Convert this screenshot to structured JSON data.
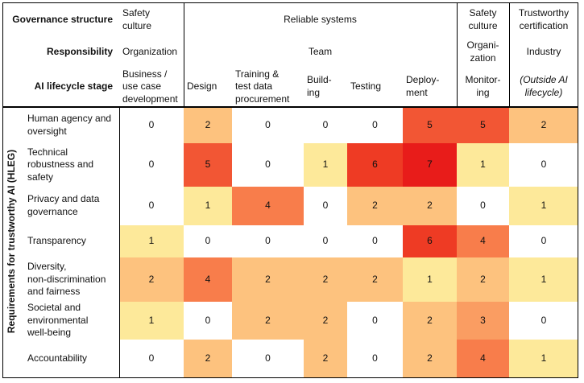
{
  "chart_data": {
    "type": "heatmap",
    "row_titles": [
      "Governance structure",
      "Responsibility",
      "AI lifecycle stage"
    ],
    "governance": [
      "Safety\nculture",
      "Reliable systems",
      "Safety\nculture",
      "Trustworthy\ncertification"
    ],
    "responsibility": [
      "Organization",
      "Team",
      "Organi-\nzation",
      "Industry"
    ],
    "stages": [
      "Business /\nuse case\ndevelopment",
      "Design",
      "Training &\ntest data\nprocurement",
      "Build-\ning",
      "Testing",
      "Deploy-\nment",
      "Monitor-\ning",
      "(Outside AI\nlifecycle)"
    ],
    "y_label": "Requirements for trustworthy AI (HLEG)",
    "rows": [
      "Human agency and\noversight",
      "Technical\nrobustness and\nsafety",
      "Privacy and data\ngovernance",
      "Transparency",
      "Diversity,\nnon-discrimination\nand fairness",
      "Societal and\nenvironmental\nwell-being",
      "Accountability"
    ],
    "values": [
      [
        0,
        2,
        0,
        0,
        0,
        5,
        5,
        2
      ],
      [
        0,
        5,
        0,
        1,
        6,
        7,
        1,
        0
      ],
      [
        0,
        1,
        4,
        0,
        2,
        2,
        0,
        1
      ],
      [
        1,
        0,
        0,
        0,
        0,
        6,
        4,
        0
      ],
      [
        2,
        4,
        2,
        2,
        2,
        1,
        2,
        1
      ],
      [
        1,
        0,
        2,
        2,
        0,
        2,
        3,
        0
      ],
      [
        0,
        2,
        0,
        2,
        0,
        2,
        4,
        1
      ]
    ],
    "colors": [
      "#ffffff",
      "#fde99a",
      "#fdc27e",
      "#fa9d62",
      "#f87d4b",
      "#f25634",
      "#ee3b24",
      "#e81c1a"
    ]
  }
}
